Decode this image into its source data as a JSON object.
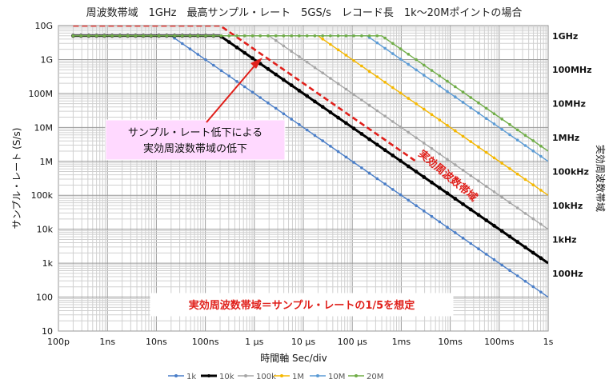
{
  "chart_data": {
    "type": "line",
    "title": "周波数帯域　1GHz　最高サンプル・レート　5GS/s　レコード長　1k～20Mポイントの場合",
    "xlabel": "時間軸 Sec/div",
    "ylabel": "サンプル・レート (S/s)",
    "ylabel_right": "実効周波数帯域",
    "x_scale": "log",
    "y_scale": "log",
    "xlim": [
      1e-10,
      1
    ],
    "ylim": [
      10,
      10000000000.0
    ],
    "grid": true,
    "legend_position": "bottom",
    "x_tick_labels": [
      "100p",
      "1ns",
      "10ns",
      "100ns",
      "1 μs",
      "10 μs",
      "100 μs",
      "1ms",
      "10ms",
      "100ms",
      "1s"
    ],
    "y_tick_labels": [
      "10",
      "100",
      "1k",
      "10k",
      "100k",
      "1M",
      "10M",
      "100M",
      "1G",
      "10G"
    ],
    "right_tick_labels": [
      "100Hz",
      "1kHz",
      "10kHz",
      "100kHz",
      "1MHz",
      "10MHz",
      "100MHz",
      "1GHz"
    ],
    "series": [
      {
        "name": "1k",
        "color": "#4a7ec8",
        "width": 1.4,
        "points": [
          [
            2e-10,
            5000000000.0
          ],
          [
            2e-08,
            5000000000.0
          ],
          [
            1,
            100
          ]
        ]
      },
      {
        "name": "10k",
        "color": "#000000",
        "width": 3.0,
        "points": [
          [
            2e-10,
            5000000000.0
          ],
          [
            2e-07,
            5000000000.0
          ],
          [
            1,
            1000
          ]
        ]
      },
      {
        "name": "100k",
        "color": "#a6a6a6",
        "width": 1.4,
        "points": [
          [
            2e-10,
            5000000000.0
          ],
          [
            2e-06,
            5000000000.0
          ],
          [
            1,
            10000
          ]
        ]
      },
      {
        "name": "1M",
        "color": "#f5b800",
        "width": 1.4,
        "points": [
          [
            2e-10,
            5000000000.0
          ],
          [
            2e-05,
            5000000000.0
          ],
          [
            1,
            100000
          ]
        ]
      },
      {
        "name": "10M",
        "color": "#5b9bd5",
        "width": 1.4,
        "points": [
          [
            2e-10,
            5000000000.0
          ],
          [
            0.0002,
            5000000000.0
          ],
          [
            1,
            1000000
          ]
        ]
      },
      {
        "name": "20M",
        "color": "#70ad47",
        "width": 1.4,
        "points": [
          [
            2e-10,
            5000000000.0
          ],
          [
            0.0004,
            5000000000.0
          ],
          [
            1,
            2000000
          ]
        ]
      }
    ],
    "bandwidth_line": {
      "color": "#e0201b",
      "points": [
        [
          2e-10,
          10000000000.0
        ],
        [
          2e-07,
          10000000000.0
        ],
        [
          2e-05,
          100000000.0
        ],
        [
          0.002,
          1000000.0
        ]
      ]
    },
    "annotations": {
      "callout": [
        "サンプル・レート低下による",
        "実効周波数帯域の低下"
      ],
      "bandwidth_label": "実効周波数帯域",
      "note": "実効周波数帯域＝サンプル・レートの1/5を想定"
    }
  }
}
